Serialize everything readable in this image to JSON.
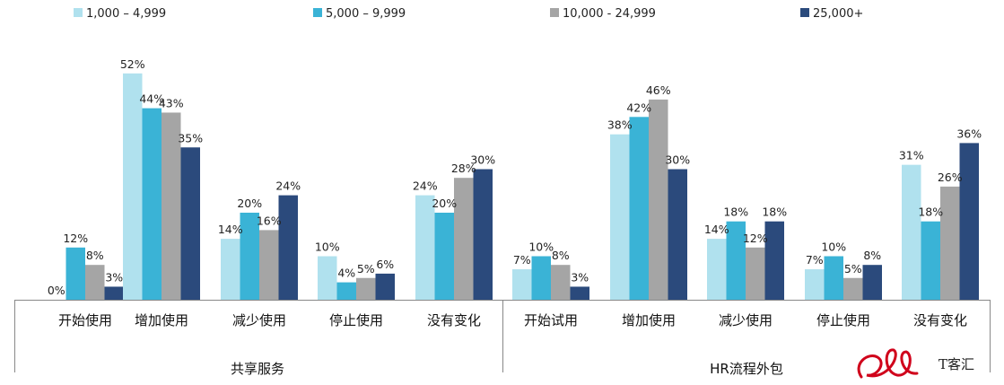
{
  "chart_data": {
    "type": "bar",
    "ylim": [
      0,
      55
    ],
    "legend_position": "top",
    "series": [
      {
        "name": "1,000 – 4,999",
        "color": "#b0e1ee"
      },
      {
        "name": "5,000 – 9,999",
        "color": "#3ab3d6"
      },
      {
        "name": "10,000 - 24,999",
        "color": "#a5a5a5"
      },
      {
        "name": "25,000+",
        "color": "#2b4a7c"
      }
    ],
    "groups": [
      {
        "label": "共享服务",
        "categories": [
          {
            "label": "开始使用",
            "values": [
              0,
              12,
              8,
              3
            ]
          },
          {
            "label": "增加使用",
            "values": [
              52,
              44,
              43,
              35
            ]
          },
          {
            "label": "减少使用",
            "values": [
              14,
              20,
              16,
              24
            ]
          },
          {
            "label": "停止使用",
            "values": [
              10,
              4,
              5,
              6
            ]
          },
          {
            "label": "没有变化",
            "values": [
              24,
              20,
              28,
              30
            ]
          }
        ]
      },
      {
        "label": "HR流程外包",
        "categories": [
          {
            "label": "开始试用",
            "values": [
              7,
              10,
              8,
              3
            ]
          },
          {
            "label": "增加使用",
            "values": [
              38,
              42,
              46,
              30
            ]
          },
          {
            "label": "减少使用",
            "values": [
              14,
              18,
              12,
              18
            ]
          },
          {
            "label": "停止使用",
            "values": [
              7,
              10,
              5,
              8
            ]
          },
          {
            "label": "没有变化",
            "values": [
              31,
              18,
              26,
              36
            ]
          }
        ]
      }
    ],
    "value_suffix": "%"
  },
  "watermark": {
    "text": "T客汇",
    "color": "#d0021b"
  }
}
